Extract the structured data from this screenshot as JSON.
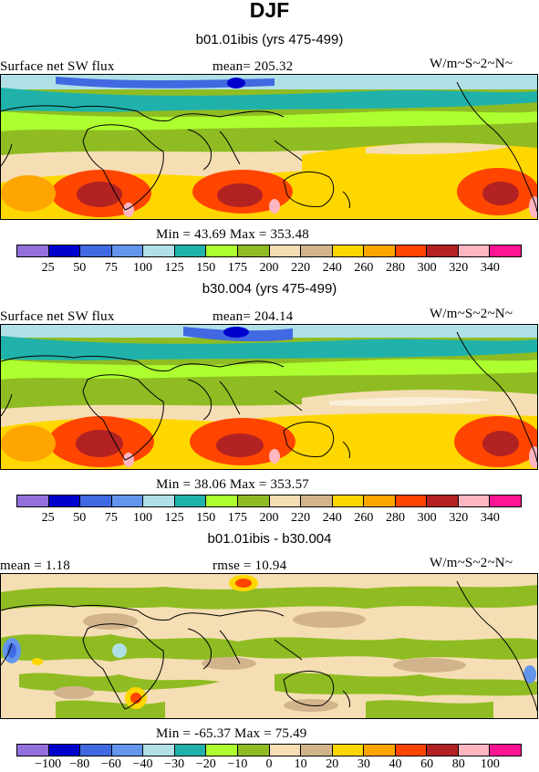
{
  "title": "DJF",
  "panels": [
    {
      "subtitle": "b01.01ibis (yrs 475-499)",
      "left_label": "Surface net SW flux",
      "center_label": "mean= 205.32",
      "right_label": "W/m~S~2~N~",
      "stats": "Min =  43.69 Max = 353.48",
      "colorbar": {
        "colors": [
          "#9370db",
          "#0000cd",
          "#4169e1",
          "#6495ed",
          "#b0e0e6",
          "#20b2aa",
          "#adff2f",
          "#8fbc22",
          "#f5deb3",
          "#d2b48c",
          "#ffd700",
          "#ffa500",
          "#ff4500",
          "#b22222",
          "#ffb6c1",
          "#ff1493"
        ],
        "ticks": [
          "25",
          "50",
          "75",
          "100",
          "125",
          "150",
          "175",
          "200",
          "220",
          "240",
          "260",
          "280",
          "300",
          "320",
          "340"
        ]
      }
    },
    {
      "subtitle": "b30.004 (yrs 475-499)",
      "left_label": "Surface net SW flux",
      "center_label": "mean= 204.14",
      "right_label": "W/m~S~2~N~",
      "stats": "Min =  38.06 Max = 353.57",
      "colorbar": {
        "colors": [
          "#9370db",
          "#0000cd",
          "#4169e1",
          "#6495ed",
          "#b0e0e6",
          "#20b2aa",
          "#adff2f",
          "#8fbc22",
          "#f5deb3",
          "#d2b48c",
          "#ffd700",
          "#ffa500",
          "#ff4500",
          "#b22222",
          "#ffb6c1",
          "#ff1493"
        ],
        "ticks": [
          "25",
          "50",
          "75",
          "100",
          "125",
          "150",
          "175",
          "200",
          "220",
          "240",
          "260",
          "280",
          "300",
          "320",
          "340"
        ]
      }
    },
    {
      "subtitle": "b01.01ibis - b30.004",
      "left_label": "mean =   1.18",
      "center_label": "rmse =  10.94",
      "right_label": "W/m~S~2~N~",
      "stats": "Min = -65.37 Max =  75.49",
      "colorbar": {
        "colors": [
          "#9370db",
          "#0000cd",
          "#4169e1",
          "#6495ed",
          "#b0e0e6",
          "#20b2aa",
          "#adff2f",
          "#8fbc22",
          "#f5deb3",
          "#d2b48c",
          "#ffd700",
          "#ffa500",
          "#ff4500",
          "#b22222",
          "#ffb6c1",
          "#ff1493"
        ],
        "ticks": [
          "−100",
          "−80",
          "−60",
          "−40",
          "−30",
          "−20",
          "−10",
          "0",
          "10",
          "20",
          "30",
          "40",
          "60",
          "80",
          "100"
        ]
      }
    }
  ]
}
